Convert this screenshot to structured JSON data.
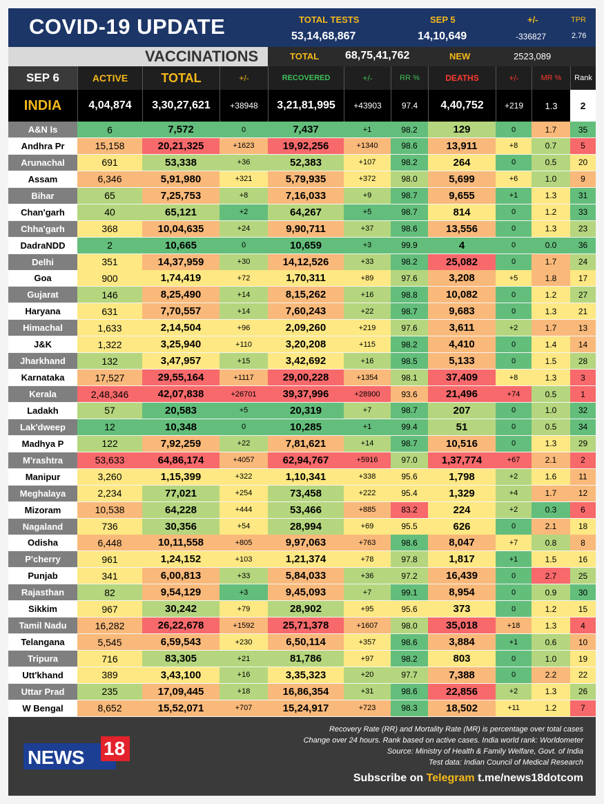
{
  "header": {
    "title": "COVID-19 UPDATE",
    "total_tests_label": "TOTAL TESTS",
    "total_tests": "53,14,68,867",
    "date_label": "SEP 5",
    "date_tests": "14,10,649",
    "change_label": "+/-",
    "change": "-336827",
    "tpr_label": "TPR",
    "tpr": "2.76"
  },
  "vaccinations": {
    "label": "VACCINATIONS",
    "total_label": "TOTAL",
    "total": "68,75,41,762",
    "new_label": "NEW",
    "new": "2523,089"
  },
  "columns": {
    "date": "SEP 6",
    "active": "ACTIVE",
    "total": "TOTAL",
    "total_change": "+/-",
    "recovered": "RECOVERED",
    "recovered_change": "+/-",
    "rr": "RR %",
    "deaths": "DEATHS",
    "deaths_change": "+/-",
    "mr": "MR %",
    "rank": "Rank"
  },
  "india": {
    "name": "INDIA",
    "active": "4,04,874",
    "total": "3,30,27,621",
    "tc": "+38948",
    "recovered": "3,21,81,995",
    "rc": "+43903",
    "rr": "97.4",
    "deaths": "4,40,752",
    "dc": "+219",
    "mr": "1.3",
    "rank": "2"
  },
  "colors": {
    "green": "#63be7b",
    "light_green": "#b5d67e",
    "yellow": "#fde883",
    "orange": "#f9b97a",
    "red": "#f8696b",
    "grey_name": "#7f7f7f"
  },
  "states": [
    [
      "A&N Is",
      "6",
      "7,572",
      "0",
      "7,437",
      "+1",
      "98.2",
      "129",
      "0",
      "1.7",
      "35"
    ],
    [
      "Andhra Pr",
      "15,158",
      "20,21,325",
      "+1623",
      "19,92,256",
      "+1340",
      "98.6",
      "13,911",
      "+8",
      "0.7",
      "5"
    ],
    [
      "Arunachal",
      "691",
      "53,338",
      "+36",
      "52,383",
      "+107",
      "98.2",
      "264",
      "0",
      "0.5",
      "20"
    ],
    [
      "Assam",
      "6,346",
      "5,91,980",
      "+321",
      "5,79,935",
      "+372",
      "98.0",
      "5,699",
      "+6",
      "1.0",
      "9"
    ],
    [
      "Bihar",
      "65",
      "7,25,753",
      "+8",
      "7,16,033",
      "+9",
      "98.7",
      "9,655",
      "+1",
      "1.3",
      "31"
    ],
    [
      "Chan'garh",
      "40",
      "65,121",
      "+2",
      "64,267",
      "+5",
      "98.7",
      "814",
      "0",
      "1.2",
      "33"
    ],
    [
      "Chha'garh",
      "368",
      "10,04,635",
      "+24",
      "9,90,711",
      "+37",
      "98.6",
      "13,556",
      "0",
      "1.3",
      "23"
    ],
    [
      "DadraNDD",
      "2",
      "10,665",
      "0",
      "10,659",
      "+3",
      "99.9",
      "4",
      "0",
      "0.0",
      "36"
    ],
    [
      "Delhi",
      "351",
      "14,37,959",
      "+30",
      "14,12,526",
      "+33",
      "98.2",
      "25,082",
      "0",
      "1.7",
      "24"
    ],
    [
      "Goa",
      "900",
      "1,74,419",
      "+72",
      "1,70,311",
      "+89",
      "97.6",
      "3,208",
      "+5",
      "1.8",
      "17"
    ],
    [
      "Gujarat",
      "146",
      "8,25,490",
      "+14",
      "8,15,262",
      "+16",
      "98.8",
      "10,082",
      "0",
      "1.2",
      "27"
    ],
    [
      "Haryana",
      "631",
      "7,70,557",
      "+14",
      "7,60,243",
      "+22",
      "98.7",
      "9,683",
      "0",
      "1.3",
      "21"
    ],
    [
      "Himachal",
      "1,633",
      "2,14,504",
      "+96",
      "2,09,260",
      "+219",
      "97.6",
      "3,611",
      "+2",
      "1.7",
      "13"
    ],
    [
      "J&K",
      "1,322",
      "3,25,940",
      "+110",
      "3,20,208",
      "+115",
      "98.2",
      "4,410",
      "0",
      "1.4",
      "14"
    ],
    [
      "Jharkhand",
      "132",
      "3,47,957",
      "+15",
      "3,42,692",
      "+16",
      "98.5",
      "5,133",
      "0",
      "1.5",
      "28"
    ],
    [
      "Karnataka",
      "17,527",
      "29,55,164",
      "+1117",
      "29,00,228",
      "+1354",
      "98.1",
      "37,409",
      "+8",
      "1.3",
      "3"
    ],
    [
      "Kerala",
      "2,48,346",
      "42,07,838",
      "+26701",
      "39,37,996",
      "+28900",
      "93.6",
      "21,496",
      "+74",
      "0.5",
      "1"
    ],
    [
      "Ladakh",
      "57",
      "20,583",
      "+5",
      "20,319",
      "+7",
      "98.7",
      "207",
      "0",
      "1.0",
      "32"
    ],
    [
      "Lak'dweep",
      "12",
      "10,348",
      "0",
      "10,285",
      "+1",
      "99.4",
      "51",
      "0",
      "0.5",
      "34"
    ],
    [
      "Madhya P",
      "122",
      "7,92,259",
      "+22",
      "7,81,621",
      "+14",
      "98.7",
      "10,516",
      "0",
      "1.3",
      "29"
    ],
    [
      "M'rashtra",
      "53,633",
      "64,86,174",
      "+4057",
      "62,94,767",
      "+5916",
      "97.0",
      "1,37,774",
      "+67",
      "2.1",
      "2"
    ],
    [
      "Manipur",
      "3,260",
      "1,15,399",
      "+322",
      "1,10,341",
      "+338",
      "95.6",
      "1,798",
      "+2",
      "1.6",
      "11"
    ],
    [
      "Meghalaya",
      "2,234",
      "77,021",
      "+254",
      "73,458",
      "+222",
      "95.4",
      "1,329",
      "+4",
      "1.7",
      "12"
    ],
    [
      "Mizoram",
      "10,538",
      "64,228",
      "+444",
      "53,466",
      "+885",
      "83.2",
      "224",
      "+2",
      "0.3",
      "6"
    ],
    [
      "Nagaland",
      "736",
      "30,356",
      "+54",
      "28,994",
      "+69",
      "95.5",
      "626",
      "0",
      "2.1",
      "18"
    ],
    [
      "Odisha",
      "6,448",
      "10,11,558",
      "+805",
      "9,97,063",
      "+763",
      "98.6",
      "8,047",
      "+7",
      "0.8",
      "8"
    ],
    [
      "P'cherry",
      "961",
      "1,24,152",
      "+103",
      "1,21,374",
      "+78",
      "97.8",
      "1,817",
      "+1",
      "1.5",
      "16"
    ],
    [
      "Punjab",
      "341",
      "6,00,813",
      "+33",
      "5,84,033",
      "+36",
      "97.2",
      "16,439",
      "0",
      "2.7",
      "25"
    ],
    [
      "Rajasthan",
      "82",
      "9,54,129",
      "+3",
      "9,45,093",
      "+7",
      "99.1",
      "8,954",
      "0",
      "0.9",
      "30"
    ],
    [
      "Sikkim",
      "967",
      "30,242",
      "+79",
      "28,902",
      "+95",
      "95.6",
      "373",
      "0",
      "1.2",
      "15"
    ],
    [
      "Tamil Nadu",
      "16,282",
      "26,22,678",
      "+1592",
      "25,71,378",
      "+1607",
      "98.0",
      "35,018",
      "+18",
      "1.3",
      "4"
    ],
    [
      "Telangana",
      "5,545",
      "6,59,543",
      "+230",
      "6,50,114",
      "+357",
      "98.6",
      "3,884",
      "+1",
      "0.6",
      "10"
    ],
    [
      "Tripura",
      "716",
      "83,305",
      "+21",
      "81,786",
      "+97",
      "98.2",
      "803",
      "0",
      "1.0",
      "19"
    ],
    [
      "Utt'khand",
      "389",
      "3,43,100",
      "+16",
      "3,35,323",
      "+20",
      "97.7",
      "7,388",
      "0",
      "2.2",
      "22"
    ],
    [
      "Uttar Prad",
      "235",
      "17,09,445",
      "+18",
      "16,86,354",
      "+31",
      "98.6",
      "22,856",
      "+2",
      "1.3",
      "26"
    ],
    [
      "W Bengal",
      "8,652",
      "15,52,071",
      "+707",
      "15,24,917",
      "+723",
      "98.3",
      "18,502",
      "+11",
      "1.2",
      "7"
    ]
  ],
  "footer": {
    "notes": [
      "Recovery Rate (RR) and Mortality Rate (MR) is percentage over total cases",
      "Change over 24 hours. Rank based on active cases. India world rank: Worldometer",
      "Source: Ministry of Health & Family Welfare, Govt. of India",
      "Test data: Indian Council of Medical Research"
    ],
    "subscribe_prefix": "Subscribe on",
    "telegram": "Telegram",
    "link": "t.me/news18dotcom",
    "logo_word": "NEWS",
    "logo_num": "18"
  }
}
